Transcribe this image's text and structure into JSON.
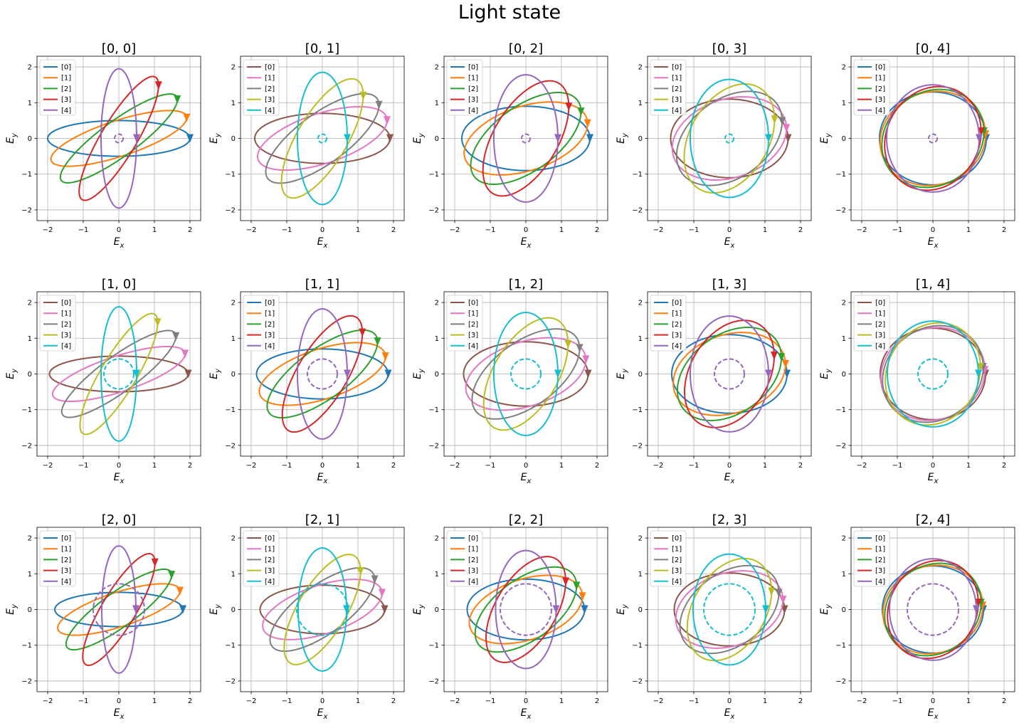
{
  "title": "Light state",
  "chart_data": {
    "type": "line",
    "title": "Light state",
    "grid": true,
    "axis_range": [
      -2.3,
      2.3
    ],
    "xticks": [
      -2,
      -1,
      0,
      1,
      2
    ],
    "yticks": [
      -2,
      -1,
      0,
      1,
      2
    ],
    "xlabel": "E_x",
    "ylabel": "E_y",
    "legend_location": "upper left",
    "colors": [
      "#1f77b4",
      "#ff7f0e",
      "#2ca02c",
      "#d62728",
      "#9467bd",
      "#8c564b",
      "#e377c2",
      "#7f7f7f",
      "#bcbd22",
      "#17becf"
    ],
    "subplots": [
      {
        "title": "[0, 0]",
        "palette": 0,
        "center_circle": {
          "radius": 0.12,
          "color": "#9467bd"
        },
        "series": [
          {
            "name": "[0]",
            "a": 2.0,
            "b": 0.5,
            "angle": 0
          },
          {
            "name": "[1]",
            "a": 2.0,
            "b": 0.5,
            "angle": 18
          },
          {
            "name": "[2]",
            "a": 2.0,
            "b": 0.5,
            "angle": 36
          },
          {
            "name": "[3]",
            "a": 2.0,
            "b": 0.5,
            "angle": 59
          },
          {
            "name": "[4]",
            "a": 1.95,
            "b": 0.5,
            "angle": 90
          }
        ]
      },
      {
        "title": "[0, 1]",
        "palette": 1,
        "center_circle": {
          "radius": 0.12,
          "color": "#17becf"
        },
        "series": [
          {
            "name": "[0]",
            "a": 1.9,
            "b": 0.7,
            "angle": 0
          },
          {
            "name": "[1]",
            "a": 1.9,
            "b": 0.7,
            "angle": 18
          },
          {
            "name": "[2]",
            "a": 1.9,
            "b": 0.7,
            "angle": 36
          },
          {
            "name": "[3]",
            "a": 1.9,
            "b": 0.7,
            "angle": 59
          },
          {
            "name": "[4]",
            "a": 1.85,
            "b": 0.7,
            "angle": 90
          }
        ]
      },
      {
        "title": "[0, 2]",
        "palette": 0,
        "center_circle": {
          "radius": 0.12,
          "color": "#9467bd"
        },
        "series": [
          {
            "name": "[0]",
            "a": 1.8,
            "b": 0.9,
            "angle": 0
          },
          {
            "name": "[1]",
            "a": 1.8,
            "b": 0.9,
            "angle": 18
          },
          {
            "name": "[2]",
            "a": 1.8,
            "b": 0.9,
            "angle": 36
          },
          {
            "name": "[3]",
            "a": 1.8,
            "b": 0.9,
            "angle": 59
          },
          {
            "name": "[4]",
            "a": 1.78,
            "b": 0.9,
            "angle": 90
          }
        ]
      },
      {
        "title": "[0, 3]",
        "palette": 1,
        "center_circle": {
          "radius": 0.12,
          "color": "#17becf"
        },
        "series": [
          {
            "name": "[0]",
            "a": 1.65,
            "b": 1.1,
            "angle": 0
          },
          {
            "name": "[1]",
            "a": 1.65,
            "b": 1.1,
            "angle": 18
          },
          {
            "name": "[2]",
            "a": 1.65,
            "b": 1.1,
            "angle": 36
          },
          {
            "name": "[3]",
            "a": 1.65,
            "b": 1.1,
            "angle": 59
          },
          {
            "name": "[4]",
            "a": 1.65,
            "b": 1.1,
            "angle": 90
          }
        ]
      },
      {
        "title": "[0, 4]",
        "palette": 0,
        "center_circle": {
          "radius": 0.12,
          "color": "#9467bd"
        },
        "series": [
          {
            "name": "[0]",
            "a": 1.5,
            "b": 1.3,
            "angle": 0
          },
          {
            "name": "[1]",
            "a": 1.5,
            "b": 1.3,
            "angle": 18
          },
          {
            "name": "[2]",
            "a": 1.5,
            "b": 1.3,
            "angle": 36
          },
          {
            "name": "[3]",
            "a": 1.5,
            "b": 1.3,
            "angle": 59
          },
          {
            "name": "[4]",
            "a": 1.5,
            "b": 1.3,
            "angle": 90
          }
        ]
      },
      {
        "title": "[1, 0]",
        "palette": 1,
        "center_circle": {
          "radius": 0.42,
          "color": "#17becf"
        },
        "series": [
          {
            "name": "[0]",
            "a": 1.95,
            "b": 0.5,
            "angle": 0
          },
          {
            "name": "[1]",
            "a": 1.95,
            "b": 0.5,
            "angle": 18
          },
          {
            "name": "[2]",
            "a": 1.95,
            "b": 0.5,
            "angle": 36
          },
          {
            "name": "[3]",
            "a": 1.95,
            "b": 0.5,
            "angle": 59
          },
          {
            "name": "[4]",
            "a": 1.88,
            "b": 0.5,
            "angle": 90
          }
        ]
      },
      {
        "title": "[1, 1]",
        "palette": 0,
        "center_circle": {
          "radius": 0.42,
          "color": "#9467bd"
        },
        "series": [
          {
            "name": "[0]",
            "a": 1.85,
            "b": 0.7,
            "angle": 0
          },
          {
            "name": "[1]",
            "a": 1.85,
            "b": 0.7,
            "angle": 18
          },
          {
            "name": "[2]",
            "a": 1.85,
            "b": 0.7,
            "angle": 36
          },
          {
            "name": "[3]",
            "a": 1.85,
            "b": 0.7,
            "angle": 59
          },
          {
            "name": "[4]",
            "a": 1.82,
            "b": 0.7,
            "angle": 90
          }
        ]
      },
      {
        "title": "[1, 2]",
        "palette": 1,
        "center_circle": {
          "radius": 0.42,
          "color": "#17becf"
        },
        "series": [
          {
            "name": "[0]",
            "a": 1.75,
            "b": 0.9,
            "angle": 0
          },
          {
            "name": "[1]",
            "a": 1.75,
            "b": 0.9,
            "angle": 18
          },
          {
            "name": "[2]",
            "a": 1.75,
            "b": 0.9,
            "angle": 36
          },
          {
            "name": "[3]",
            "a": 1.75,
            "b": 0.9,
            "angle": 59
          },
          {
            "name": "[4]",
            "a": 1.72,
            "b": 0.9,
            "angle": 90
          }
        ]
      },
      {
        "title": "[1, 3]",
        "palette": 0,
        "center_circle": {
          "radius": 0.42,
          "color": "#9467bd"
        },
        "series": [
          {
            "name": "[0]",
            "a": 1.62,
            "b": 1.1,
            "angle": 0
          },
          {
            "name": "[1]",
            "a": 1.62,
            "b": 1.1,
            "angle": 18
          },
          {
            "name": "[2]",
            "a": 1.62,
            "b": 1.1,
            "angle": 36
          },
          {
            "name": "[3]",
            "a": 1.62,
            "b": 1.1,
            "angle": 59
          },
          {
            "name": "[4]",
            "a": 1.62,
            "b": 1.1,
            "angle": 90
          }
        ]
      },
      {
        "title": "[1, 4]",
        "palette": 1,
        "center_circle": {
          "radius": 0.42,
          "color": "#17becf"
        },
        "series": [
          {
            "name": "[0]",
            "a": 1.48,
            "b": 1.28,
            "angle": 0
          },
          {
            "name": "[1]",
            "a": 1.48,
            "b": 1.28,
            "angle": 18
          },
          {
            "name": "[2]",
            "a": 1.48,
            "b": 1.28,
            "angle": 36
          },
          {
            "name": "[3]",
            "a": 1.48,
            "b": 1.28,
            "angle": 59
          },
          {
            "name": "[4]",
            "a": 1.48,
            "b": 1.28,
            "angle": 90
          }
        ]
      },
      {
        "title": "[2, 0]",
        "palette": 0,
        "center_circle": {
          "radius": 0.72,
          "color": "#9467bd"
        },
        "series": [
          {
            "name": "[0]",
            "a": 1.8,
            "b": 0.48,
            "angle": 0
          },
          {
            "name": "[1]",
            "a": 1.8,
            "b": 0.48,
            "angle": 18
          },
          {
            "name": "[2]",
            "a": 1.8,
            "b": 0.48,
            "angle": 36
          },
          {
            "name": "[3]",
            "a": 1.8,
            "b": 0.48,
            "angle": 59
          },
          {
            "name": "[4]",
            "a": 1.78,
            "b": 0.48,
            "angle": 90
          }
        ]
      },
      {
        "title": "[2, 1]",
        "palette": 1,
        "center_circle": {
          "radius": 0.72,
          "color": "#17becf"
        },
        "series": [
          {
            "name": "[0]",
            "a": 1.75,
            "b": 0.68,
            "angle": 0
          },
          {
            "name": "[1]",
            "a": 1.75,
            "b": 0.68,
            "angle": 18
          },
          {
            "name": "[2]",
            "a": 1.75,
            "b": 0.68,
            "angle": 36
          },
          {
            "name": "[3]",
            "a": 1.75,
            "b": 0.68,
            "angle": 59
          },
          {
            "name": "[4]",
            "a": 1.72,
            "b": 0.68,
            "angle": 90
          }
        ]
      },
      {
        "title": "[2, 2]",
        "palette": 0,
        "center_circle": {
          "radius": 0.72,
          "color": "#9467bd"
        },
        "series": [
          {
            "name": "[0]",
            "a": 1.65,
            "b": 0.85,
            "angle": 0
          },
          {
            "name": "[1]",
            "a": 1.65,
            "b": 0.85,
            "angle": 18
          },
          {
            "name": "[2]",
            "a": 1.65,
            "b": 0.85,
            "angle": 36
          },
          {
            "name": "[3]",
            "a": 1.65,
            "b": 0.85,
            "angle": 59
          },
          {
            "name": "[4]",
            "a": 1.65,
            "b": 0.85,
            "angle": 90
          }
        ]
      },
      {
        "title": "[2, 3]",
        "palette": 1,
        "center_circle": {
          "radius": 0.72,
          "color": "#17becf"
        },
        "series": [
          {
            "name": "[0]",
            "a": 1.55,
            "b": 1.02,
            "angle": 0
          },
          {
            "name": "[1]",
            "a": 1.55,
            "b": 1.02,
            "angle": 18
          },
          {
            "name": "[2]",
            "a": 1.55,
            "b": 1.02,
            "angle": 36
          },
          {
            "name": "[3]",
            "a": 1.55,
            "b": 1.02,
            "angle": 59
          },
          {
            "name": "[4]",
            "a": 1.55,
            "b": 1.02,
            "angle": 90
          }
        ]
      },
      {
        "title": "[2, 4]",
        "palette": 0,
        "center_circle": {
          "radius": 0.72,
          "color": "#9467bd"
        },
        "series": [
          {
            "name": "[0]",
            "a": 1.42,
            "b": 1.22,
            "angle": 0
          },
          {
            "name": "[1]",
            "a": 1.42,
            "b": 1.22,
            "angle": 18
          },
          {
            "name": "[2]",
            "a": 1.42,
            "b": 1.22,
            "angle": 36
          },
          {
            "name": "[3]",
            "a": 1.42,
            "b": 1.22,
            "angle": 59
          },
          {
            "name": "[4]",
            "a": 1.42,
            "b": 1.22,
            "angle": 90
          }
        ]
      }
    ]
  }
}
